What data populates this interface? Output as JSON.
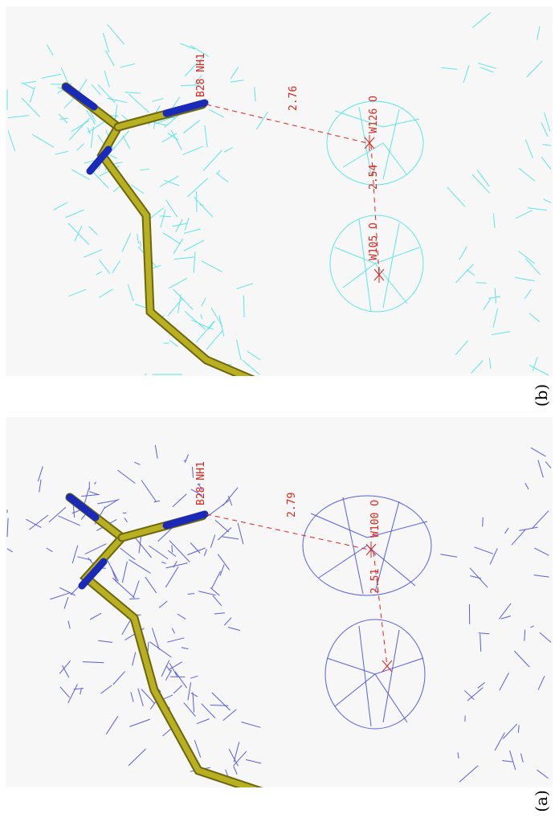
{
  "panels": [
    {
      "id": "b",
      "caption": "(b)",
      "mesh_color": "#5ee6e6",
      "labels": {
        "residue": "B28 NH1",
        "distance_main": "2.76",
        "water_primary": "W126 O",
        "distance_secondary": "2.54",
        "water_secondary": "W105 O"
      }
    },
    {
      "id": "a",
      "caption": "(a)",
      "mesh_color": "#5a5ee0",
      "labels": {
        "residue": "B28 NH1",
        "distance_main": "2.79",
        "water_primary": "W100 O",
        "distance_secondary": "2.51"
      }
    }
  ],
  "colors": {
    "carbon_stick": "#b8b020",
    "nitrogen_stick": "#1a2ab8",
    "hbond_label": "#e0241e",
    "background": "#f7f7f7"
  }
}
